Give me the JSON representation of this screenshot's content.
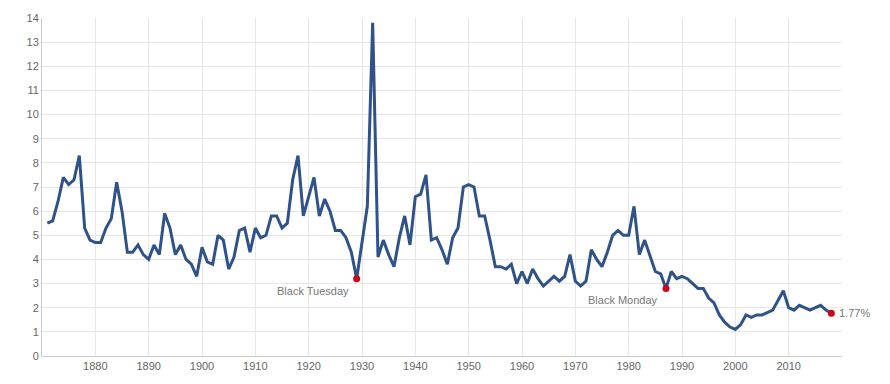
{
  "chart_data": {
    "type": "line",
    "x": [
      1871,
      1872,
      1873,
      1874,
      1875,
      1876,
      1877,
      1878,
      1879,
      1880,
      1881,
      1882,
      1883,
      1884,
      1885,
      1886,
      1887,
      1888,
      1889,
      1890,
      1891,
      1892,
      1893,
      1894,
      1895,
      1896,
      1897,
      1898,
      1899,
      1900,
      1901,
      1902,
      1903,
      1904,
      1905,
      1906,
      1907,
      1908,
      1909,
      1910,
      1911,
      1912,
      1913,
      1914,
      1915,
      1916,
      1917,
      1918,
      1919,
      1920,
      1921,
      1922,
      1923,
      1924,
      1925,
      1926,
      1927,
      1928,
      1929,
      1930,
      1931,
      1932,
      1933,
      1934,
      1935,
      1936,
      1937,
      1938,
      1939,
      1940,
      1941,
      1942,
      1943,
      1944,
      1945,
      1946,
      1947,
      1948,
      1949,
      1950,
      1951,
      1952,
      1953,
      1954,
      1955,
      1956,
      1957,
      1958,
      1959,
      1960,
      1961,
      1962,
      1963,
      1964,
      1965,
      1966,
      1967,
      1968,
      1969,
      1970,
      1971,
      1972,
      1973,
      1974,
      1975,
      1976,
      1977,
      1978,
      1979,
      1980,
      1981,
      1982,
      1983,
      1984,
      1985,
      1986,
      1987,
      1988,
      1989,
      1990,
      1991,
      1992,
      1993,
      1994,
      1995,
      1996,
      1997,
      1998,
      1999,
      2000,
      2001,
      2002,
      2003,
      2004,
      2005,
      2006,
      2007,
      2008,
      2009,
      2010,
      2011,
      2012,
      2013,
      2014,
      2015,
      2016,
      2017,
      2018
    ],
    "values": [
      5.5,
      5.6,
      6.4,
      7.4,
      7.1,
      7.3,
      8.3,
      5.3,
      4.8,
      4.7,
      4.7,
      5.3,
      5.7,
      7.2,
      6.0,
      4.3,
      4.3,
      4.6,
      4.2,
      4.0,
      4.6,
      4.2,
      5.9,
      5.3,
      4.2,
      4.6,
      4.0,
      3.8,
      3.3,
      4.5,
      3.9,
      3.8,
      5.0,
      4.8,
      3.6,
      4.1,
      5.2,
      5.3,
      4.3,
      5.3,
      4.9,
      5.0,
      5.8,
      5.8,
      5.3,
      5.5,
      7.3,
      8.3,
      5.8,
      6.6,
      7.4,
      5.8,
      6.5,
      6.0,
      5.2,
      5.2,
      4.9,
      4.3,
      3.2,
      4.7,
      6.2,
      13.8,
      4.1,
      4.8,
      4.2,
      3.7,
      4.9,
      5.8,
      4.6,
      6.6,
      6.7,
      7.5,
      4.8,
      4.9,
      4.4,
      3.8,
      4.9,
      5.3,
      7.0,
      7.1,
      7.0,
      5.8,
      5.8,
      4.8,
      3.7,
      3.7,
      3.6,
      3.8,
      3.0,
      3.5,
      3.0,
      3.6,
      3.2,
      2.9,
      3.1,
      3.3,
      3.1,
      3.3,
      4.2,
      3.1,
      2.9,
      3.1,
      4.4,
      4.0,
      3.7,
      4.3,
      5.0,
      5.2,
      5.0,
      5.0,
      6.2,
      4.2,
      4.8,
      4.1,
      3.5,
      3.4,
      2.8,
      3.5,
      3.2,
      3.3,
      3.2,
      3.0,
      2.8,
      2.8,
      2.4,
      2.2,
      1.7,
      1.4,
      1.2,
      1.1,
      1.3,
      1.7,
      1.6,
      1.7,
      1.7,
      1.8,
      1.9,
      2.3,
      2.7,
      2.0,
      1.9,
      2.1,
      2.0,
      1.9,
      2.0,
      2.1,
      1.9,
      1.77
    ],
    "color": "#2f5289",
    "xlim": [
      1870,
      2020
    ],
    "xticks": [
      1880,
      1890,
      1900,
      1910,
      1920,
      1930,
      1940,
      1950,
      1960,
      1970,
      1980,
      1990,
      2000,
      2010
    ],
    "ylim": [
      0,
      14
    ],
    "yticks": [
      0,
      1,
      2,
      3,
      4,
      5,
      6,
      7,
      8,
      9,
      10,
      11,
      12,
      13,
      14
    ],
    "grid": true,
    "annotations": [
      {
        "x": 1929,
        "y": 3.2,
        "text": "Black Tuesday",
        "color": "#d0021b"
      },
      {
        "x": 1987,
        "y": 2.8,
        "text": "Black Monday",
        "color": "#d0021b"
      },
      {
        "x": 2018,
        "y": 1.77,
        "text": "1.77%",
        "color": "#d0021b"
      }
    ]
  }
}
